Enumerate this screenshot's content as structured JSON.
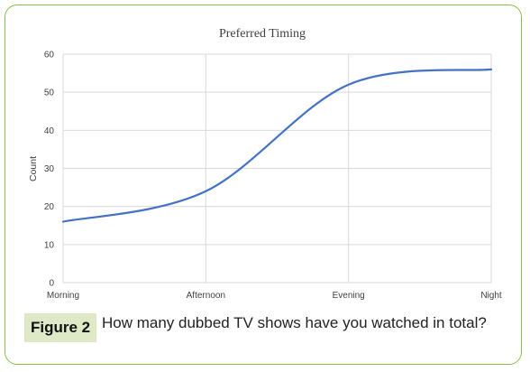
{
  "chart_data": {
    "type": "line",
    "title": "Preferred Timing",
    "xlabel": "",
    "ylabel": "Count",
    "categories": [
      "Morning",
      "Afternoon",
      "Evening",
      "Night"
    ],
    "series": [
      {
        "values": [
          16,
          24,
          52,
          56
        ],
        "color": "#4472c4",
        "smooth": true
      }
    ],
    "ylim": [
      0,
      60
    ],
    "yticks": [
      "0",
      "10",
      "20",
      "30",
      "40",
      "50",
      "60"
    ],
    "grid": true,
    "legend": "none"
  },
  "caption": {
    "label": "Figure 2",
    "text": "How many dubbed TV shows have you watched in total?"
  },
  "colors": {
    "frame_border": "#8cbf47",
    "badge_background": "#dfe9c8",
    "series": "#4472c4"
  }
}
